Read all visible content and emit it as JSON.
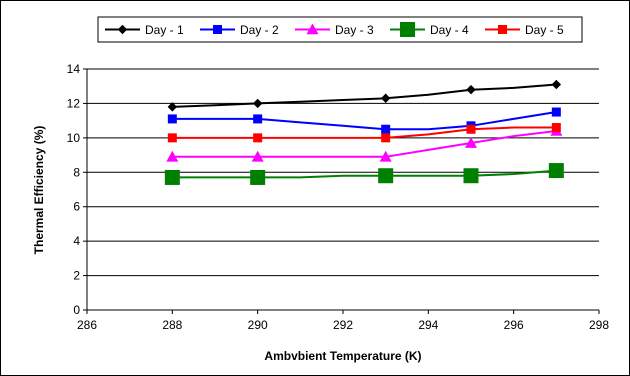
{
  "chart_data": {
    "type": "line",
    "xlabel": "Ambvbient Temperature (K)",
    "ylabel": "Thermal Efficiency (%)",
    "xlim": [
      286,
      298
    ],
    "ylim": [
      0,
      14
    ],
    "x_ticks": [
      286,
      288,
      290,
      292,
      294,
      296,
      298
    ],
    "y_ticks": [
      0,
      2,
      4,
      6,
      8,
      10,
      12,
      14
    ],
    "grid": "horizontal",
    "legend_position": "top",
    "series": [
      {
        "name": "Day - 1",
        "color": "#000000",
        "marker": "diamond",
        "x": [
          288,
          289,
          290,
          291,
          292,
          293,
          293.5,
          294,
          295,
          296,
          297
        ],
        "y": [
          11.8,
          11.9,
          12.0,
          12.1,
          12.2,
          12.3,
          12.4,
          12.5,
          12.8,
          12.9,
          13.1
        ],
        "marked_x": [
          288,
          290,
          293,
          295,
          297
        ],
        "marked_y": [
          11.8,
          12.0,
          12.3,
          12.8,
          13.1
        ]
      },
      {
        "name": "Day - 2",
        "color": "#0000ff",
        "marker": "square",
        "x": [
          288,
          289,
          290,
          291,
          292,
          293,
          294,
          295,
          296,
          297
        ],
        "y": [
          11.1,
          11.1,
          11.1,
          10.9,
          10.7,
          10.5,
          10.5,
          10.7,
          11.1,
          11.5
        ],
        "marked_x": [
          288,
          290,
          293,
          295,
          297
        ],
        "marked_y": [
          11.1,
          11.1,
          10.5,
          10.7,
          11.5
        ]
      },
      {
        "name": "Day - 3",
        "color": "#ff00ff",
        "marker": "triangle",
        "x": [
          288,
          289,
          290,
          291,
          292,
          293,
          294,
          295,
          296,
          297
        ],
        "y": [
          8.9,
          8.9,
          8.9,
          8.9,
          8.9,
          8.9,
          9.3,
          9.7,
          10.1,
          10.4
        ],
        "marked_x": [
          288,
          290,
          293,
          295,
          297
        ],
        "marked_y": [
          8.9,
          8.9,
          8.9,
          9.7,
          10.4
        ]
      },
      {
        "name": "Day - 4",
        "color": "#008000",
        "marker": "square-large",
        "x": [
          288,
          289,
          290,
          291,
          292,
          293,
          294,
          295,
          296,
          297
        ],
        "y": [
          7.7,
          7.7,
          7.7,
          7.7,
          7.8,
          7.8,
          7.8,
          7.8,
          7.9,
          8.1
        ],
        "marked_x": [
          288,
          290,
          293,
          295,
          297
        ],
        "marked_y": [
          7.7,
          7.7,
          7.8,
          7.8,
          8.1
        ]
      },
      {
        "name": "Day - 5",
        "color": "#ff0000",
        "marker": "square",
        "x": [
          288,
          289,
          290,
          291,
          292,
          293,
          294,
          295,
          296,
          297
        ],
        "y": [
          10.0,
          10.0,
          10.0,
          10.0,
          10.0,
          10.0,
          10.2,
          10.5,
          10.6,
          10.6
        ],
        "marked_x": [
          288,
          290,
          293,
          295,
          297
        ],
        "marked_y": [
          10.0,
          10.0,
          10.0,
          10.5,
          10.6
        ]
      }
    ]
  }
}
